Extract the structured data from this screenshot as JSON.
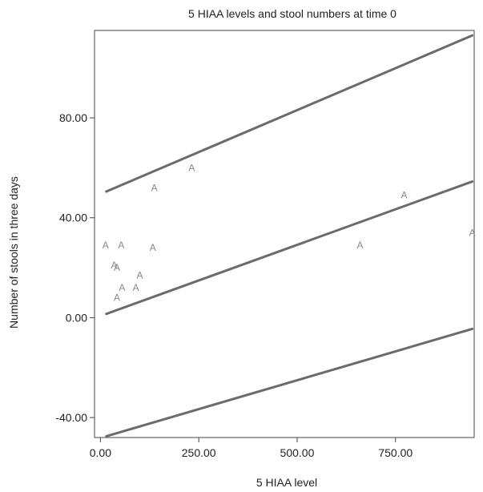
{
  "chart_data": {
    "type": "scatter",
    "title": "5 HIAA levels and stool numbers at time 0",
    "xlabel": "5 HIAA level",
    "ylabel": "Number of stools in three days",
    "xlim": [
      -15,
      950
    ],
    "ylim": [
      -48,
      115
    ],
    "x_ticks": [
      0,
      250,
      500,
      750
    ],
    "x_tick_labels": [
      "0.00",
      "250.00",
      "500.00",
      "750.00"
    ],
    "y_ticks": [
      -40,
      0,
      40,
      80
    ],
    "y_tick_labels": [
      "-40.00",
      "0.00",
      "40.00",
      "80.00"
    ],
    "grid": false,
    "legend": "none",
    "marker_label": "A",
    "series": [
      {
        "marker": "A",
        "points": [
          {
            "x": 13,
            "y": 29
          },
          {
            "x": 35,
            "y": 21
          },
          {
            "x": 42,
            "y": 20
          },
          {
            "x": 42,
            "y": 8
          },
          {
            "x": 53,
            "y": 29
          },
          {
            "x": 55,
            "y": 12
          },
          {
            "x": 90,
            "y": 12
          },
          {
            "x": 100,
            "y": 17
          },
          {
            "x": 133,
            "y": 28
          },
          {
            "x": 137,
            "y": 52
          },
          {
            "x": 232,
            "y": 60
          },
          {
            "x": 660,
            "y": 29
          },
          {
            "x": 772,
            "y": 49
          },
          {
            "x": 945,
            "y": 34
          }
        ]
      }
    ],
    "lines": [
      {
        "role": "upper-band",
        "x": [
          15,
          945
        ],
        "y": [
          50.5,
          113
        ]
      },
      {
        "role": "fit",
        "x": [
          15,
          945
        ],
        "y": [
          1.5,
          54.5
        ]
      },
      {
        "role": "lower-band",
        "x": [
          15,
          945
        ],
        "y": [
          -47.5,
          -4.5
        ]
      }
    ],
    "colors": {
      "line": "#6b6b6b",
      "marker": "#888888",
      "axes": "#444444",
      "text": "#222222"
    }
  }
}
